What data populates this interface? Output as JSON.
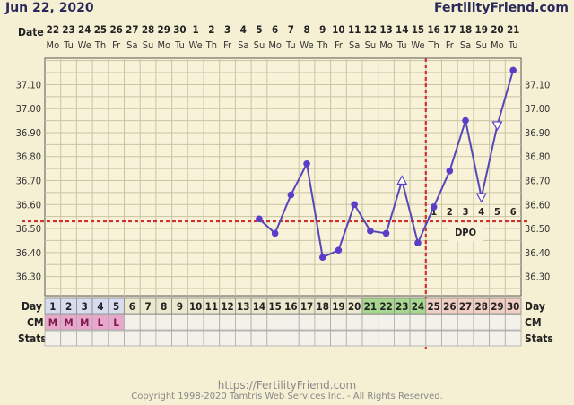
{
  "header": {
    "date": "Jun 22, 2020",
    "brand": "FertilityFriend.com"
  },
  "labels": {
    "date_row": "Date",
    "day_row": "Day",
    "cm_row": "CM",
    "stats_row": "Stats",
    "dpo": "DPO"
  },
  "footer": {
    "url": "https://FertilityFriend.com",
    "copyright": "Copyright 1998-2020 Tamtris Web Services Inc. - All Rights Reserved."
  },
  "colors": {
    "line": "#5548b8",
    "marker": "#5a3ec8",
    "coverline": "#d03030",
    "fertile": "#a8d890",
    "luteal": "#f2cfc5",
    "period_cell": "#d8dcee",
    "cm_m": "#e8a8cc",
    "cm_text": "#7a1a4a"
  },
  "chart_data": {
    "type": "line",
    "dates": [
      "22",
      "23",
      "24",
      "25",
      "26",
      "27",
      "28",
      "29",
      "30",
      "1",
      "2",
      "3",
      "4",
      "5",
      "6",
      "7",
      "8",
      "9",
      "10",
      "11",
      "12",
      "13",
      "14",
      "15",
      "16",
      "17",
      "18",
      "19",
      "20",
      "21"
    ],
    "weekdays": [
      "Mo",
      "Tu",
      "We",
      "Th",
      "Fr",
      "Sa",
      "Su",
      "Mo",
      "Tu",
      "We",
      "Th",
      "Fr",
      "Sa",
      "Su",
      "Mo",
      "Tu",
      "We",
      "Th",
      "Fr",
      "Sa",
      "Su",
      "Mo",
      "Tu",
      "We",
      "Th",
      "Fr",
      "Sa",
      "Su",
      "Mo",
      "Tu"
    ],
    "cycle_days": [
      1,
      2,
      3,
      4,
      5,
      6,
      7,
      8,
      9,
      10,
      11,
      12,
      13,
      14,
      15,
      16,
      17,
      18,
      19,
      20,
      21,
      22,
      23,
      24,
      25,
      26,
      27,
      28,
      29,
      30
    ],
    "temperatures": [
      null,
      null,
      null,
      null,
      null,
      null,
      null,
      null,
      null,
      null,
      null,
      null,
      null,
      36.54,
      36.48,
      36.64,
      36.77,
      36.38,
      36.41,
      36.6,
      36.49,
      36.48,
      36.7,
      36.44,
      36.59,
      36.74,
      36.95,
      36.63,
      36.93,
      37.16
    ],
    "markers": [
      "",
      "",
      "",
      "",
      "",
      "",
      "",
      "",
      "",
      "",
      "",
      "",
      "",
      "dot",
      "dot",
      "dot",
      "dot",
      "dot",
      "dot",
      "dot",
      "dot",
      "dot",
      "tri-up",
      "dot",
      "dot",
      "dot",
      "dot",
      "tri-down",
      "tri-down",
      "dot"
    ],
    "y_ticks": [
      "37.10",
      "37.00",
      "36.90",
      "36.80",
      "36.70",
      "36.60",
      "36.50",
      "36.40",
      "36.30"
    ],
    "ylim": [
      36.22,
      37.21
    ],
    "coverline": 36.53,
    "ovulation_day": 24,
    "dpo_labels": [
      "1",
      "2",
      "3",
      "4",
      "5",
      "6"
    ],
    "period_days": [
      1,
      2,
      3,
      4,
      5
    ],
    "fertile_days": [
      21,
      22,
      23,
      24
    ],
    "luteal_start": 25,
    "cm": [
      "M",
      "M",
      "M",
      "L",
      "L",
      "",
      "",
      "",
      "",
      "",
      "",
      "",
      "",
      "",
      "",
      "",
      "",
      "",
      "",
      "",
      "",
      "",
      "",
      "",
      "",
      "",
      "",
      "",
      "",
      ""
    ]
  }
}
